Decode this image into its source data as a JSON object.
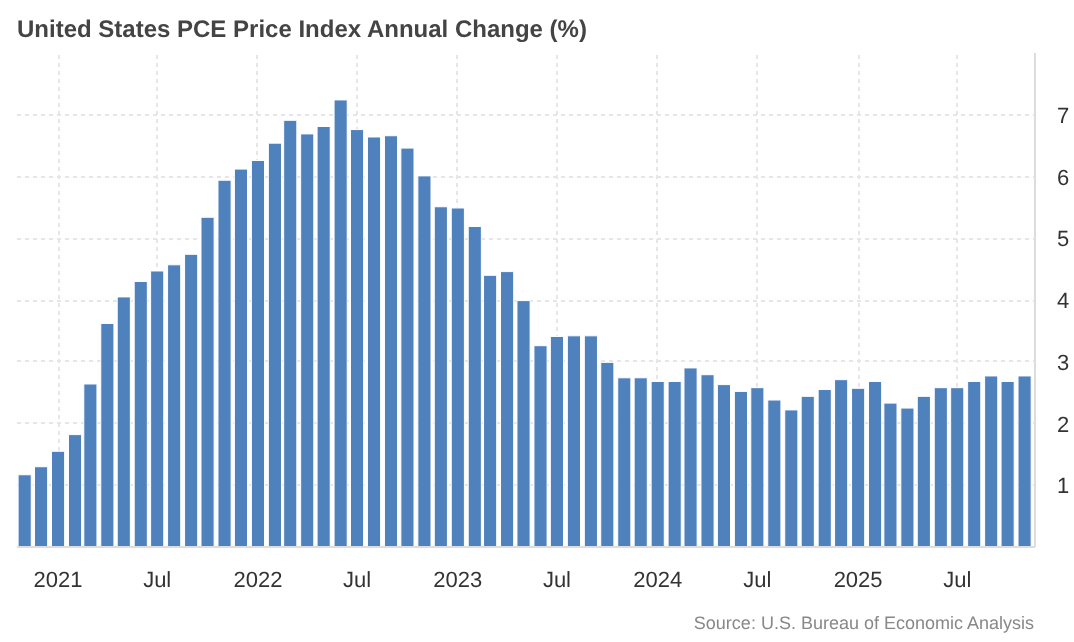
{
  "chart_data": {
    "type": "bar",
    "title": "United States PCE Price Index Annual Change (%)",
    "x": [
      "2020-11",
      "2020-12",
      "2021-01",
      "2021-02",
      "2021-03",
      "2021-04",
      "2021-05",
      "2021-06",
      "2021-07",
      "2021-08",
      "2021-09",
      "2021-10",
      "2021-11",
      "2021-12",
      "2022-01",
      "2022-02",
      "2022-03",
      "2022-04",
      "2022-05",
      "2022-06",
      "2022-07",
      "2022-08",
      "2022-09",
      "2022-10",
      "2022-11",
      "2022-12",
      "2023-01",
      "2023-02",
      "2023-03",
      "2023-04",
      "2023-05",
      "2023-06",
      "2023-07",
      "2023-08",
      "2023-09",
      "2023-10",
      "2023-11",
      "2023-12",
      "2024-01",
      "2024-02",
      "2024-03",
      "2024-04",
      "2024-05",
      "2024-06",
      "2024-07",
      "2024-08",
      "2024-09",
      "2024-10",
      "2024-11",
      "2024-12",
      "2025-01",
      "2025-02",
      "2025-03",
      "2025-04",
      "2025-05",
      "2025-06",
      "2025-07",
      "2025-08",
      "2025-09",
      "2025-10",
      "2025-11"
    ],
    "values": [
      1.17,
      1.3,
      1.55,
      1.82,
      2.64,
      3.62,
      4.05,
      4.3,
      4.47,
      4.57,
      4.74,
      5.34,
      5.94,
      6.12,
      6.26,
      6.54,
      6.91,
      6.69,
      6.81,
      7.24,
      6.76,
      6.64,
      6.66,
      6.46,
      6.01,
      5.51,
      5.49,
      5.19,
      4.4,
      4.46,
      3.99,
      3.26,
      3.41,
      3.42,
      3.42,
      2.99,
      2.74,
      2.74,
      2.68,
      2.68,
      2.9,
      2.79,
      2.63,
      2.52,
      2.58,
      2.38,
      2.22,
      2.44,
      2.55,
      2.71,
      2.57,
      2.68,
      2.33,
      2.25,
      2.44,
      2.58,
      2.58,
      2.68,
      2.77,
      2.68,
      2.77
    ],
    "color": "#4f81bd",
    "xlim": [
      "2020-10-18",
      "2025-11-20"
    ],
    "xticks": [
      {
        "value": "2021-01",
        "label": "2021"
      },
      {
        "value": "2021-07",
        "label": "Jul"
      },
      {
        "value": "2022-01",
        "label": "2022"
      },
      {
        "value": "2022-07",
        "label": "Jul"
      },
      {
        "value": "2023-01",
        "label": "2023"
      },
      {
        "value": "2023-07",
        "label": "Jul"
      },
      {
        "value": "2024-01",
        "label": "2024"
      },
      {
        "value": "2024-07",
        "label": "Jul"
      },
      {
        "value": "2025-01",
        "label": "2025"
      },
      {
        "value": "2025-07",
        "label": "Jul"
      }
    ],
    "ylim": [
      0,
      8
    ],
    "yticks": [
      1,
      2,
      3,
      4,
      5,
      6,
      7
    ],
    "grid": true,
    "annotations": [
      "Source: U.S. Bureau of Economic Analysis"
    ]
  }
}
